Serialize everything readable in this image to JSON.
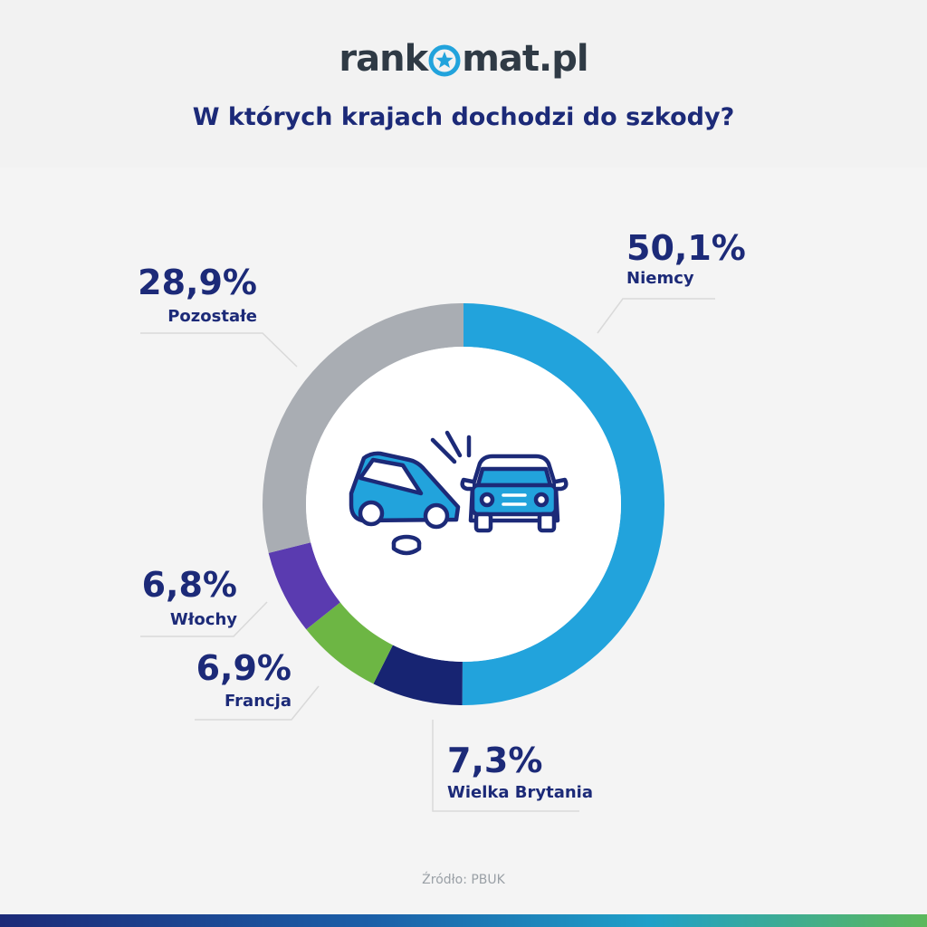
{
  "header": {
    "logo_prefix": "rank",
    "logo_suffix": "mat.pl",
    "title": "W których krajach dochodzi do szkody?"
  },
  "chart_data": {
    "type": "pie",
    "center_icon": "car-collision-icon",
    "slices": [
      {
        "label": "Niemcy",
        "value": 50.1,
        "display": "50,1%",
        "color": "#22a3dc"
      },
      {
        "label": "Wielka Brytania",
        "value": 7.3,
        "display": "7,3%",
        "color": "#172472"
      },
      {
        "label": "Francja",
        "value": 6.9,
        "display": "6,9%",
        "color": "#6db644"
      },
      {
        "label": "Włochy",
        "value": 6.8,
        "display": "6,8%",
        "color": "#5a3bb0"
      },
      {
        "label": "Pozostałe",
        "value": 28.9,
        "display": "28,9%",
        "color": "#a9adb3"
      }
    ]
  },
  "footer": {
    "source": "Źródło: PBUK"
  }
}
